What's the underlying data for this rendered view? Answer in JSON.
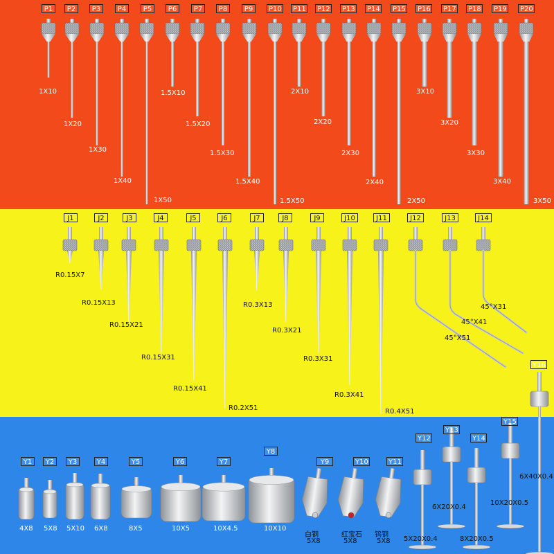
{
  "colors": {
    "band_p": "#f24a1a",
    "band_j": "#f7f21a",
    "band_y": "#2e86e8",
    "steel": "#c9ccd0",
    "steel_dark": "#8e9297"
  },
  "p_series": [
    {
      "tag": "P1",
      "label": "1X10"
    },
    {
      "tag": "P2",
      "label": "1X20"
    },
    {
      "tag": "P3",
      "label": "1X30"
    },
    {
      "tag": "P4",
      "label": "1X40"
    },
    {
      "tag": "P5",
      "label": "1X50"
    },
    {
      "tag": "P6",
      "label": "1.5X10"
    },
    {
      "tag": "P7",
      "label": "1.5X20"
    },
    {
      "tag": "P8",
      "label": "1.5X30"
    },
    {
      "tag": "P9",
      "label": "1.5X40"
    },
    {
      "tag": "P10",
      "label": "1.5X50"
    },
    {
      "tag": "P11",
      "label": "2X10"
    },
    {
      "tag": "P12",
      "label": "2X20"
    },
    {
      "tag": "P13",
      "label": "2X30"
    },
    {
      "tag": "P14",
      "label": "2X40"
    },
    {
      "tag": "P15",
      "label": "2X50"
    },
    {
      "tag": "P16",
      "label": "3X10"
    },
    {
      "tag": "P17",
      "label": "3X20"
    },
    {
      "tag": "P18",
      "label": "3X30"
    },
    {
      "tag": "P19",
      "label": "3X40"
    },
    {
      "tag": "P20",
      "label": "3X50"
    }
  ],
  "j_series": [
    {
      "tag": "J1",
      "label": "R0.15X7"
    },
    {
      "tag": "J2",
      "label": "R0.15X13"
    },
    {
      "tag": "J3",
      "label": "R0.15X21"
    },
    {
      "tag": "J4",
      "label": "R0.15X31"
    },
    {
      "tag": "J5",
      "label": "R0.15X41"
    },
    {
      "tag": "J6",
      "label": "R0.2X51"
    },
    {
      "tag": "J7",
      "label": "R0.3X13"
    },
    {
      "tag": "J8",
      "label": "R0.3X21"
    },
    {
      "tag": "J9",
      "label": "R0.3X31"
    },
    {
      "tag": "J10",
      "label": "R0.3X41"
    },
    {
      "tag": "J11",
      "label": "R0.4X51"
    },
    {
      "tag": "J12",
      "label": "45°X51"
    },
    {
      "tag": "J13",
      "label": "45°X41"
    },
    {
      "tag": "J14",
      "label": "45°X31"
    }
  ],
  "y_series": [
    {
      "tag": "Y1",
      "label": "4X8"
    },
    {
      "tag": "Y2",
      "label": "5X8"
    },
    {
      "tag": "Y3",
      "label": "5X10"
    },
    {
      "tag": "Y4",
      "label": "6X8"
    },
    {
      "tag": "Y5",
      "label": "8X5"
    },
    {
      "tag": "Y6",
      "label": "10X5"
    },
    {
      "tag": "Y7",
      "label": "10X4.5"
    },
    {
      "tag": "Y8",
      "label": "10X10"
    },
    {
      "tag": "Y9",
      "label": "白钢",
      "label2": "5X8"
    },
    {
      "tag": "Y10",
      "label": "红宝石",
      "label2": "5X8"
    },
    {
      "tag": "Y11",
      "label": "钨钢",
      "label2": "5X8"
    },
    {
      "tag": "Y12",
      "label": "5X20X0.4"
    },
    {
      "tag": "Y13",
      "label": "6X20X0.4"
    },
    {
      "tag": "Y14",
      "label": "8X20X0.5"
    },
    {
      "tag": "Y15",
      "label": "10X20X0.5"
    },
    {
      "tag": "Y16",
      "label": "6X40X0.4"
    }
  ]
}
